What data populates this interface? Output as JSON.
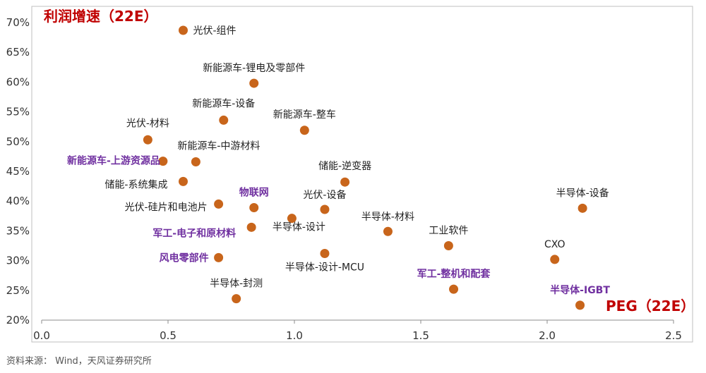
{
  "source_note": "资料来源： Wind，天风证券研究所",
  "colors": {
    "marker": "#c8651b",
    "highlight_label": "#7030a0",
    "axis_title": "#c00000",
    "frame": "#bfbfbf"
  },
  "chart_data": {
    "type": "scatter",
    "ylabel": "利润增速（22E）",
    "xlabel": "PEG（22E）",
    "xlim": [
      0.0,
      2.5
    ],
    "ylim": [
      0.2,
      0.7
    ],
    "x_ticks": [
      "0.0",
      "0.5",
      "1.0",
      "1.5",
      "2.0",
      "2.5"
    ],
    "y_ticks": [
      "20%",
      "25%",
      "30%",
      "35%",
      "40%",
      "45%",
      "50%",
      "55%",
      "60%",
      "65%",
      "70%"
    ],
    "grid": false,
    "points": [
      {
        "label": "光伏-组件",
        "x": 0.56,
        "y": 0.687,
        "highlight": false
      },
      {
        "label": "新能源车-锂电及零部件",
        "x": 0.84,
        "y": 0.598,
        "highlight": false
      },
      {
        "label": "新能源车-设备",
        "x": 0.72,
        "y": 0.536,
        "highlight": false
      },
      {
        "label": "新能源车-整车",
        "x": 1.04,
        "y": 0.519,
        "highlight": false
      },
      {
        "label": "光伏-材料",
        "x": 0.42,
        "y": 0.503,
        "highlight": false
      },
      {
        "label": "新能源车-中游材料",
        "x": 0.61,
        "y": 0.466,
        "highlight": false
      },
      {
        "label": "新能源车-上游资源品",
        "x": 0.48,
        "y": 0.467,
        "highlight": true
      },
      {
        "label": "储能-逆变器",
        "x": 1.2,
        "y": 0.432,
        "highlight": false
      },
      {
        "label": "储能-系统集成",
        "x": 0.56,
        "y": 0.433,
        "highlight": false
      },
      {
        "label": "光伏-硅片和电池片",
        "x": 0.7,
        "y": 0.395,
        "highlight": false
      },
      {
        "label": "物联网",
        "x": 0.84,
        "y": 0.389,
        "highlight": true
      },
      {
        "label": "光伏-设备",
        "x": 1.12,
        "y": 0.386,
        "highlight": false
      },
      {
        "label": "半导体-设计",
        "x": 0.99,
        "y": 0.371,
        "highlight": false
      },
      {
        "label": "半导体-材料",
        "x": 1.37,
        "y": 0.349,
        "highlight": false
      },
      {
        "label": "军工-电子和原材料",
        "x": 0.83,
        "y": 0.356,
        "highlight": true
      },
      {
        "label": "工业软件",
        "x": 1.61,
        "y": 0.325,
        "highlight": false
      },
      {
        "label": "半导体-设备",
        "x": 2.14,
        "y": 0.388,
        "highlight": false
      },
      {
        "label": "CXO",
        "x": 2.03,
        "y": 0.302,
        "highlight": false
      },
      {
        "label": "风电零部件",
        "x": 0.7,
        "y": 0.305,
        "highlight": true
      },
      {
        "label": "半导体-设计-MCU",
        "x": 1.12,
        "y": 0.312,
        "highlight": false
      },
      {
        "label": "军工-整机和配套",
        "x": 1.63,
        "y": 0.252,
        "highlight": true
      },
      {
        "label": "半导体-封测",
        "x": 0.77,
        "y": 0.236,
        "highlight": false
      },
      {
        "label": "半导体-IGBT",
        "x": 2.13,
        "y": 0.225,
        "highlight": true
      }
    ]
  }
}
